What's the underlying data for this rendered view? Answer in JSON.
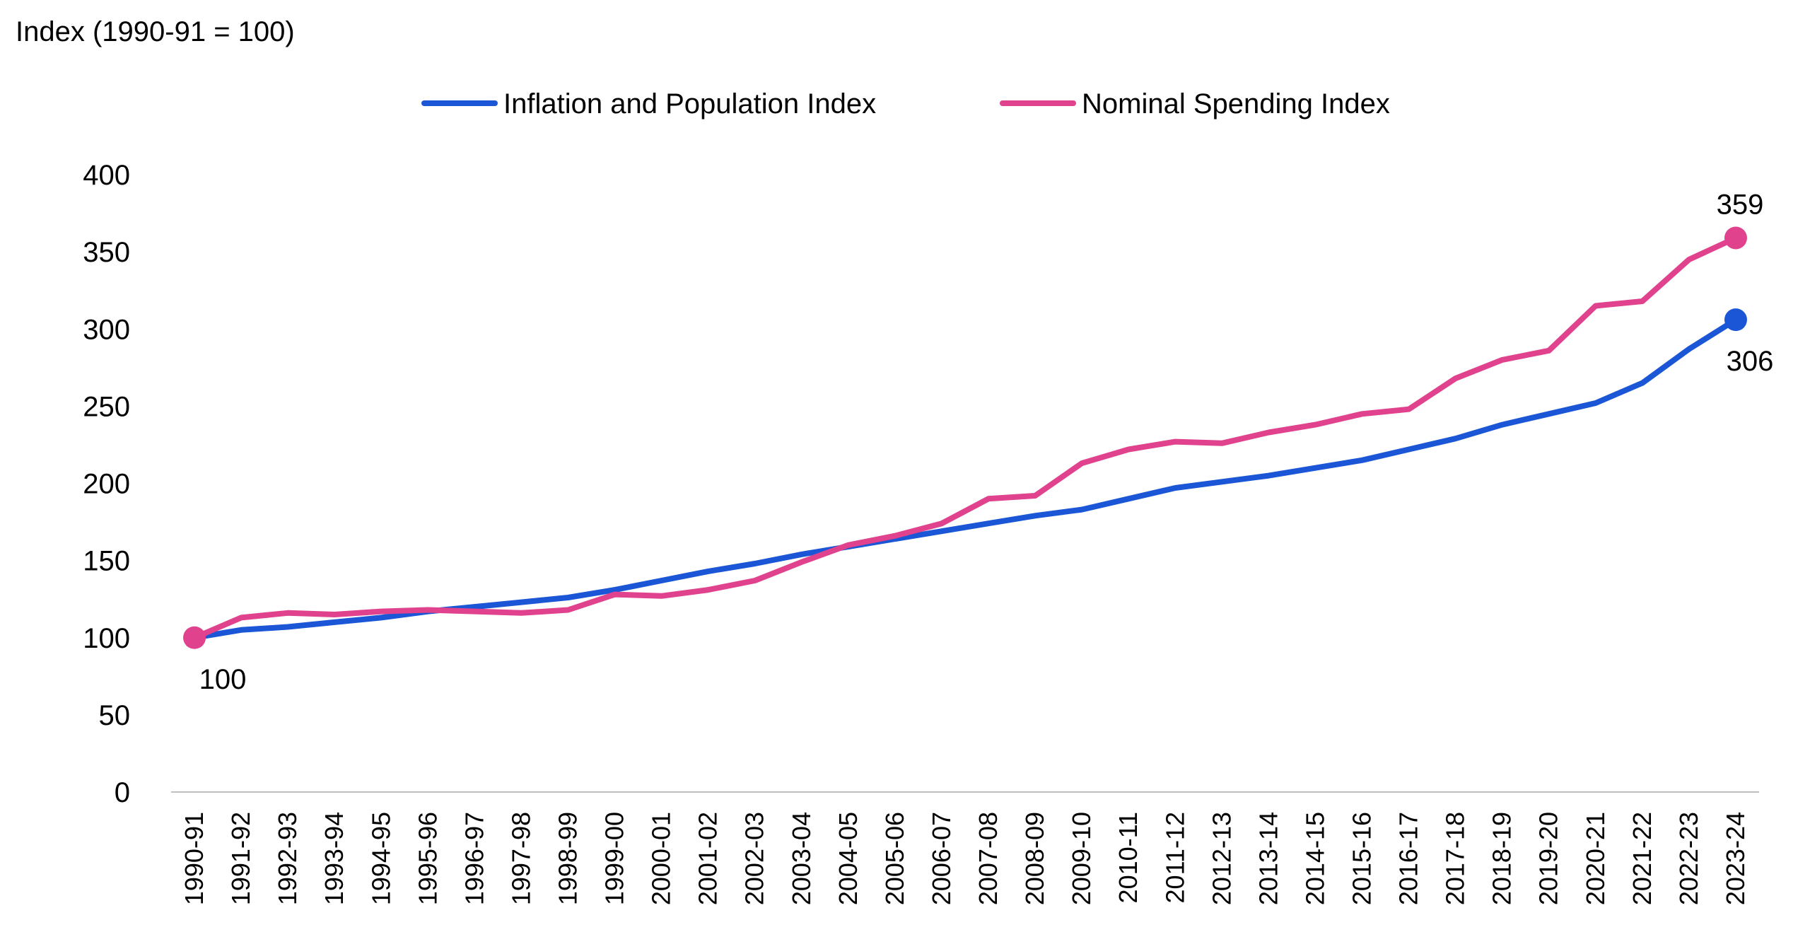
{
  "chart_data": {
    "type": "line",
    "ylabel": "Index (1990-91 = 100)",
    "xlabel": "",
    "title": "",
    "ylim": [
      0,
      400
    ],
    "yticks": [
      0,
      50,
      100,
      150,
      200,
      250,
      300,
      350,
      400
    ],
    "grid": false,
    "legend_position": "top-center",
    "categories": [
      "1990-91",
      "1991-92",
      "1992-93",
      "1993-94",
      "1994-95",
      "1995-96",
      "1996-97",
      "1997-98",
      "1998-99",
      "1999-00",
      "2000-01",
      "2001-02",
      "2002-03",
      "2003-04",
      "2004-05",
      "2005-06",
      "2006-07",
      "2007-08",
      "2008-09",
      "2009-10",
      "2010-11",
      "2011-12",
      "2012-13",
      "2013-14",
      "2014-15",
      "2015-16",
      "2016-17",
      "2017-18",
      "2018-19",
      "2019-20",
      "2020-21",
      "2021-22",
      "2022-23",
      "2023-24"
    ],
    "series": [
      {
        "name": "Inflation and Population Index",
        "color": "#1a56d6",
        "values": [
          100,
          105,
          107,
          110,
          113,
          117,
          120,
          123,
          126,
          131,
          137,
          143,
          148,
          154,
          159,
          164,
          169,
          174,
          179,
          183,
          190,
          197,
          201,
          205,
          210,
          215,
          222,
          229,
          238,
          245,
          252,
          265,
          287,
          306
        ],
        "end_label": "306"
      },
      {
        "name": "Nominal Spending Index",
        "color": "#e0428e",
        "values": [
          100,
          113,
          116,
          115,
          117,
          118,
          117,
          116,
          118,
          128,
          127,
          131,
          137,
          149,
          160,
          166,
          174,
          190,
          192,
          213,
          222,
          227,
          226,
          233,
          238,
          245,
          248,
          268,
          280,
          286,
          315,
          318,
          345,
          359
        ],
        "start_label": "100",
        "end_label": "359"
      }
    ]
  }
}
